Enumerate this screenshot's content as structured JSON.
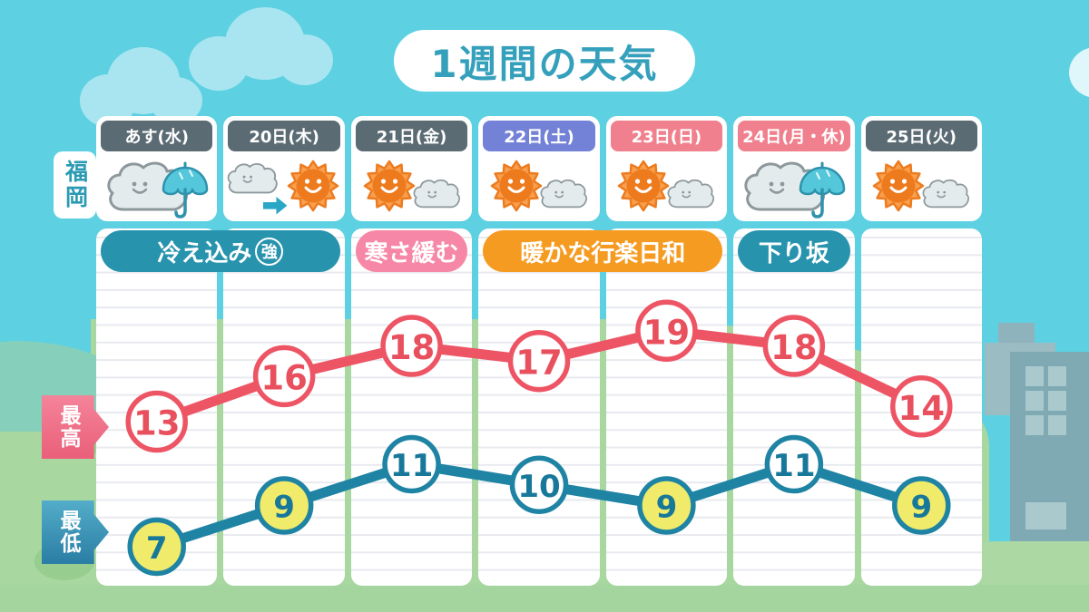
{
  "title": "1週間の天気",
  "location": "福岡",
  "series_labels": {
    "high": "最高",
    "low": "最低"
  },
  "days": [
    {
      "label": "あす(水)",
      "header_color": "weekday",
      "icon": "cloud-umbrella"
    },
    {
      "label": "20日(木)",
      "header_color": "weekday",
      "icon": "cloud-then-sun"
    },
    {
      "label": "21日(金)",
      "header_color": "weekday",
      "icon": "sun-cloud"
    },
    {
      "label": "22日(土)",
      "header_color": "saturday",
      "icon": "sun-cloud"
    },
    {
      "label": "23日(日)",
      "header_color": "holiday",
      "icon": "sun-cloud"
    },
    {
      "label": "24日(月・休)",
      "header_color": "holiday",
      "icon": "cloud-umbrella"
    },
    {
      "label": "25日(火)",
      "header_color": "weekday",
      "icon": "sun-cloud"
    }
  ],
  "banners": [
    {
      "label": "冷え込み",
      "badge": "強",
      "color": "teal",
      "span": [
        0,
        1
      ]
    },
    {
      "label": "寒さ緩む",
      "badge": null,
      "color": "pink",
      "span": [
        2,
        2
      ]
    },
    {
      "label": "暖かな行楽日和",
      "badge": null,
      "color": "orange",
      "span": [
        3,
        4
      ]
    },
    {
      "label": "下り坂",
      "badge": null,
      "color": "teal",
      "span": [
        5,
        5
      ]
    }
  ],
  "chart_data": {
    "type": "line",
    "categories": [
      "あす(水)",
      "20日(木)",
      "21日(金)",
      "22日(土)",
      "23日(日)",
      "24日(月・休)",
      "25日(火)"
    ],
    "series": [
      {
        "name": "最高",
        "values": [
          13,
          16,
          18,
          17,
          19,
          18,
          14
        ],
        "highlighted": [
          false,
          false,
          false,
          false,
          false,
          false,
          false
        ]
      },
      {
        "name": "最低",
        "values": [
          7,
          9,
          11,
          10,
          9,
          11,
          9
        ],
        "highlighted": [
          true,
          true,
          false,
          false,
          true,
          false,
          true
        ]
      }
    ],
    "legend_position": "left",
    "grid": "horizontal-ruled-lines"
  },
  "colors": {
    "header_weekday": "#5b6b74",
    "header_saturday": "#7382d6",
    "header_holiday": "#f0808d",
    "banner_teal": "#2793ad",
    "banner_pink": "#f687a7",
    "banner_orange": "#f69b21",
    "high_line": "#ed5565",
    "high_text": "#e9505e",
    "low_line": "#1f84a4",
    "low_text": "#17789a",
    "low_highlight_fill": "#f1eb6b"
  }
}
